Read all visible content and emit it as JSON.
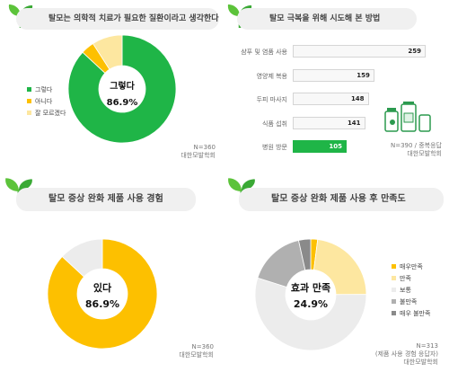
{
  "colors": {
    "green": "#1fb547",
    "yellow": "#fdc000",
    "lightyellow": "#fde7a0",
    "white": "#ececec",
    "gray": "#b0b0b0",
    "darkgray": "#8a8a8a"
  },
  "p1": {
    "title": "탈모는 의학적 치료가 필요한 질환이라고 생각한다",
    "center_top": "그렇다",
    "center_value": "86.9%",
    "note_line1": "N=360",
    "note_line2": "대한모발학회"
  },
  "p2": {
    "title": "탈모 극복을 위해 시도해 본 방법",
    "note_line1": "N=390 / 중복응답",
    "note_line2": "대한모발학회"
  },
  "p3": {
    "title": "탈모 증상 완화 제품 사용 경험",
    "center_top": "있다",
    "center_value": "86.9%",
    "note_line1": "N=360",
    "note_line2": "대한모발학회"
  },
  "p4": {
    "title": "탈모 증상 완화 제품 사용 후 만족도",
    "center_top": "효과 만족",
    "center_value": "24.9%",
    "note_line1": "N=313",
    "note_line2": "(제품 사용 경험 응답자)",
    "note_line3": "대한모발학회"
  },
  "chart_data": [
    {
      "type": "pie",
      "title": "탈모는 의학적 치료가 필요한 질환이라고 생각한다",
      "categories": [
        "그렇다",
        "아니다",
        "잘 모르겠다"
      ],
      "values": [
        86.9,
        4.0,
        9.1
      ],
      "colors": [
        "#1fb547",
        "#fdc000",
        "#fde7a0"
      ],
      "legend": "left"
    },
    {
      "type": "bar",
      "title": "탈모 극복을 위해 시도해 본 방법",
      "categories": [
        "샴푸 및 염품 사용",
        "영양제 복용",
        "두피 마사지",
        "식품 섭취",
        "병원 방문"
      ],
      "values": [
        259,
        159,
        148,
        141,
        105
      ],
      "orientation": "horizontal"
    },
    {
      "type": "pie",
      "title": "탈모 증상 완화 제품 사용 경험",
      "values": [
        86.9,
        13.1
      ],
      "colors": [
        "#fdc000",
        "#ececec"
      ]
    },
    {
      "type": "pie",
      "title": "탈모 증상 완화 제품 사용 후 만족도",
      "categories": [
        "매우만족",
        "만족",
        "보통",
        "불만족",
        "매우 불만족"
      ],
      "values": [
        2.0,
        22.9,
        55.0,
        16.6,
        3.5
      ],
      "colors": [
        "#fdc000",
        "#fde7a0",
        "#ececec",
        "#b0b0b0",
        "#8a8a8a"
      ],
      "legend": "right"
    }
  ]
}
